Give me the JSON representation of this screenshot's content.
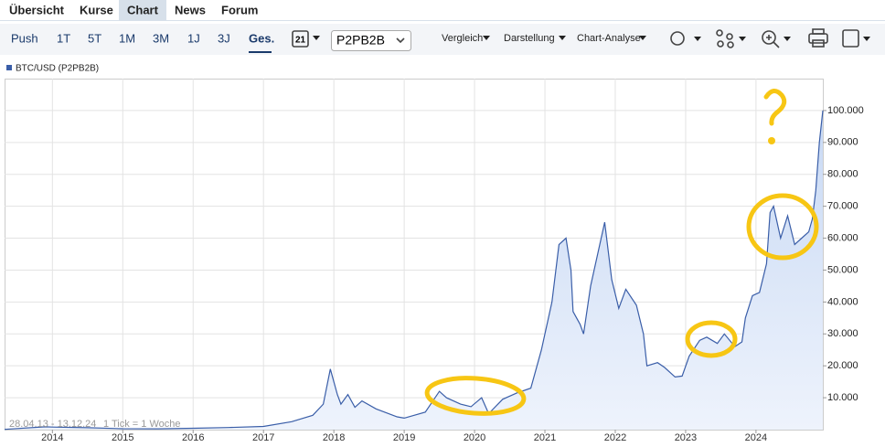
{
  "tabs": [
    "Übersicht",
    "Kurse",
    "Chart",
    "News",
    "Forum"
  ],
  "toolbar": {
    "ranges": [
      "Push",
      "1T",
      "5T",
      "1M",
      "3M",
      "1J",
      "3J",
      "Ges."
    ],
    "calendar_day": "21",
    "exchange": "P2PB2B",
    "menus": [
      "Vergleich",
      "Darstellung",
      "Chart-Analyse"
    ]
  },
  "chart_data": {
    "type": "line",
    "series": [
      {
        "name": "BTC/USD (P2PB2B)",
        "color": "#3a5ea8",
        "values": [
          100,
          900,
          800,
          600,
          300,
          250,
          430,
          650,
          1000,
          2500,
          4500,
          8000,
          19000,
          11000,
          8000,
          11000,
          7000,
          9000,
          6500,
          4000,
          3600,
          5500,
          12000,
          10000,
          8000,
          7200,
          10000,
          5000,
          9500,
          11500,
          13000,
          25000,
          40000,
          58000,
          60000,
          50000,
          37000,
          33000,
          30000,
          45000,
          55000,
          65000,
          47000,
          38000,
          44000,
          39000,
          30000,
          20000,
          21000,
          19500,
          16500,
          16800,
          23000,
          28000,
          29000,
          27000,
          30000,
          26000,
          27500,
          35000,
          42000,
          43000,
          52000,
          68000,
          70000,
          60000,
          67000,
          58000,
          60000,
          62000,
          66000,
          75000,
          90000,
          100000
        ]
      }
    ],
    "x": [
      2013.32,
      2013.9,
      2014.0,
      2014.5,
      2015.0,
      2015.5,
      2016.0,
      2016.5,
      2017.0,
      2017.4,
      2017.7,
      2017.85,
      2017.95,
      2018.05,
      2018.1,
      2018.2,
      2018.3,
      2018.4,
      2018.6,
      2018.9,
      2019.0,
      2019.3,
      2019.5,
      2019.6,
      2019.8,
      2019.95,
      2020.1,
      2020.2,
      2020.4,
      2020.6,
      2020.8,
      2020.95,
      2021.1,
      2021.2,
      2021.3,
      2021.37,
      2021.4,
      2021.5,
      2021.55,
      2021.65,
      2021.75,
      2021.85,
      2021.95,
      2022.05,
      2022.15,
      2022.3,
      2022.4,
      2022.45,
      2022.6,
      2022.7,
      2022.85,
      2022.95,
      2023.05,
      2023.2,
      2023.3,
      2023.45,
      2023.55,
      2023.7,
      2023.8,
      2023.85,
      2023.95,
      2024.05,
      2024.15,
      2024.2,
      2024.25,
      2024.35,
      2024.45,
      2024.55,
      2024.65,
      2024.75,
      2024.8,
      2024.85,
      2024.9,
      2024.95
    ],
    "xlim": [
      2013.32,
      2024.95
    ],
    "xticks": [
      2014,
      2015,
      2016,
      2017,
      2018,
      2019,
      2020,
      2021,
      2022,
      2023,
      2024
    ],
    "ylim": [
      0,
      110000
    ],
    "yticks": [
      {
        "value": 10000,
        "label": "10.000"
      },
      {
        "value": 20000,
        "label": "20.000"
      },
      {
        "value": 30000,
        "label": "30.000"
      },
      {
        "value": 40000,
        "label": "40.000"
      },
      {
        "value": 50000,
        "label": "50.000"
      },
      {
        "value": 60000,
        "label": "60.000"
      },
      {
        "value": 70000,
        "label": "70.000"
      },
      {
        "value": 80000,
        "label": "80.000"
      },
      {
        "value": 90000,
        "label": "90.000"
      },
      {
        "value": 100000,
        "label": "100.000"
      }
    ],
    "grid": true,
    "date_range": "28.04.13 - 13.12.24",
    "tick_note": "1 Tick = 1 Woche"
  }
}
